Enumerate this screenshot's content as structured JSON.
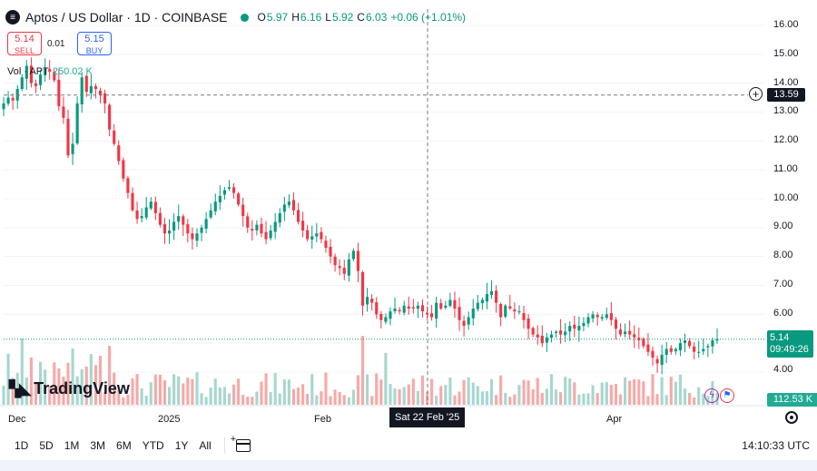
{
  "header": {
    "symbol_icon": "aptos-icon",
    "title": "Aptos / US Dollar · 1D · COINBASE",
    "ohlc": [
      {
        "key": "O",
        "value": "5.97"
      },
      {
        "key": "H",
        "value": "6.16"
      },
      {
        "key": "L",
        "value": "5.92"
      },
      {
        "key": "C",
        "value": "6.03"
      }
    ],
    "change": "+0.06 (+1.01%)"
  },
  "trade": {
    "sell_price": "5.14",
    "sell_label": "SELL",
    "spread": "0.01",
    "buy_price": "5.15",
    "buy_label": "BUY"
  },
  "volume_legend": {
    "label": "Vol · APT",
    "value": "250.02 K"
  },
  "price_axis": {
    "ticks": [
      "16.00",
      "15.00",
      "14.00",
      "13.00",
      "12.00",
      "11.00",
      "10.00",
      "9.00",
      "8.00",
      "7.00",
      "6.00",
      "5.00",
      "4.00"
    ],
    "crosshair_price": "13.59",
    "last_price": "5.14",
    "countdown": "09:49:26",
    "volume_last": "112.53 K"
  },
  "time_axis": {
    "labels": [
      {
        "text": "Dec",
        "index": 0
      },
      {
        "text": "2025",
        "index": 31
      },
      {
        "text": "Feb",
        "index": 62
      },
      {
        "text": "Apr",
        "index": 121
      }
    ],
    "crosshair_date": "Sat 22 Feb '25",
    "crosshair_index": 83
  },
  "toolbar": {
    "timeframes": [
      "1D",
      "5D",
      "1M",
      "3M",
      "6M",
      "YTD",
      "1Y",
      "All"
    ],
    "clock": "14:10:33 UTC"
  },
  "branding": {
    "logo_text": "TradingView"
  },
  "colors": {
    "up": "#089981",
    "down": "#f23645",
    "vol_up": "#a7d7cf",
    "vol_down": "#f7a9a7",
    "accent": "#2962ff"
  },
  "chart_data": {
    "type": "candlestick",
    "title": "Aptos / US Dollar",
    "interval": "1D",
    "ylim": [
      3.5,
      16.4
    ],
    "yticks": [
      4,
      5,
      6,
      7,
      8,
      9,
      10,
      11,
      12,
      13,
      14,
      15,
      16
    ],
    "closes": [
      13.3,
      13.5,
      13.4,
      13.8,
      14.2,
      14.6,
      14.0,
      13.9,
      14.3,
      14.5,
      14.4,
      14.1,
      13.2,
      12.8,
      11.5,
      11.9,
      13.3,
      14.2,
      13.7,
      13.9,
      13.8,
      13.6,
      13.3,
      12.4,
      11.9,
      11.3,
      10.7,
      10.2,
      9.6,
      9.3,
      9.4,
      9.7,
      9.9,
      9.5,
      9.1,
      8.8,
      8.9,
      9.2,
      9.4,
      9.1,
      8.8,
      8.6,
      8.8,
      9.0,
      9.3,
      9.6,
      9.9,
      10.1,
      10.3,
      10.4,
      10.2,
      9.8,
      9.4,
      9.0,
      8.9,
      9.1,
      8.8,
      8.6,
      8.9,
      9.2,
      9.5,
      9.8,
      9.9,
      9.6,
      9.2,
      8.9,
      8.6,
      8.7,
      8.8,
      8.6,
      8.3,
      8.0,
      7.7,
      7.6,
      7.4,
      7.9,
      8.2,
      7.5,
      6.3,
      6.6,
      6.4,
      6.0,
      5.8,
      5.9,
      6.1,
      6.2,
      6.1,
      6.3,
      6.2,
      6.2,
      6.3,
      6.1,
      6.0,
      5.9,
      6.4,
      6.2,
      6.3,
      6.5,
      6.2,
      5.8,
      5.6,
      5.9,
      6.2,
      6.4,
      6.5,
      6.7,
      6.8,
      6.4,
      5.9,
      6.3,
      6.2,
      6.1,
      6.1,
      5.8,
      5.5,
      5.3,
      5.2,
      5.0,
      5.2,
      5.3,
      5.4,
      5.3,
      5.4,
      5.6,
      5.5,
      5.6,
      5.7,
      5.9,
      6.0,
      5.9,
      5.9,
      6.0,
      5.8,
      5.5,
      5.3,
      5.4,
      5.3,
      5.2,
      5.1,
      4.9,
      4.7,
      4.5,
      4.3,
      4.6,
      4.8,
      4.7,
      4.8,
      5.0,
      5.1,
      4.9,
      4.7,
      4.7,
      4.8,
      4.9,
      5.1,
      5.14
    ],
    "crosshair_value": 13.59,
    "last_value": 5.14
  }
}
